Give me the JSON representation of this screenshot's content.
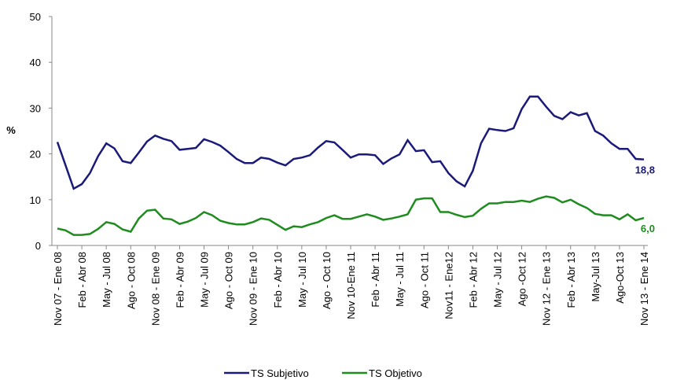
{
  "chart_data": {
    "type": "line",
    "y_label": "%",
    "categories": [
      "Nov 07 - Ene 08",
      null,
      null,
      "Feb - Abr 08",
      null,
      null,
      "May - Jul 08",
      null,
      null,
      "Ago - Oct 08",
      null,
      null,
      "Nov 08 - Ene 09",
      null,
      null,
      "Feb - Abr 09",
      null,
      null,
      "May - Jul 09",
      null,
      null,
      "Ago - Oct 09",
      null,
      null,
      "Nov 09 - Ene 10",
      null,
      null,
      "Feb - Abr 10",
      null,
      null,
      "May - Jul 10",
      null,
      null,
      "Ago - Oct 10",
      null,
      null,
      "Nov 10-Ene 11",
      null,
      null,
      "Feb - Abr 11",
      null,
      null,
      "May - Jul 11",
      null,
      null,
      "Ago - Oct 11",
      null,
      null,
      "Nov11 - Ene12",
      null,
      null,
      "Feb - Abr 12",
      null,
      null,
      "May - Jul 12",
      null,
      null,
      "Ago -Oct 12",
      null,
      null,
      "Nov 12 - Ene 13",
      null,
      null,
      "Feb - Abr 13",
      null,
      null,
      "May-Jul 13",
      null,
      null,
      "Ago-Oct 13",
      null,
      null,
      "Nov 13 - Ene 14"
    ],
    "series": [
      {
        "name": "TS Subjetivo",
        "color": "#1a1a7a",
        "values": [
          22.6,
          17.5,
          12.4,
          13.4,
          15.8,
          19.5,
          22.3,
          21.2,
          18.4,
          18.0,
          20.3,
          22.7,
          24.0,
          23.3,
          22.8,
          20.9,
          21.1,
          21.3,
          23.2,
          22.6,
          21.8,
          20.4,
          18.9,
          18.0,
          18.0,
          19.2,
          18.9,
          18.1,
          17.5,
          18.9,
          19.2,
          19.7,
          21.4,
          22.8,
          22.5,
          20.9,
          19.2,
          19.9,
          19.9,
          19.7,
          17.8,
          19.0,
          19.9,
          23.0,
          20.6,
          20.8,
          18.2,
          18.4,
          15.8,
          14.0,
          12.9,
          16.3,
          22.3,
          25.5,
          25.2,
          25.0,
          25.6,
          29.8,
          32.5,
          32.5,
          30.3,
          28.3,
          27.6,
          29.1,
          28.4,
          28.9,
          25.0,
          24.0,
          22.3,
          21.1,
          21.1,
          18.9,
          18.8
        ],
        "value_labels": [
          null,
          null,
          null,
          null,
          null,
          null,
          null,
          null,
          null,
          null,
          null,
          null,
          null,
          null,
          null,
          null,
          null,
          null,
          null,
          null,
          null,
          null,
          null,
          null,
          null,
          null,
          null,
          null,
          null,
          null,
          null,
          null,
          null,
          null,
          null,
          null,
          null,
          null,
          null,
          null,
          null,
          null,
          null,
          null,
          null,
          null,
          null,
          null,
          null,
          null,
          null,
          null,
          null,
          null,
          null,
          null,
          null,
          null,
          null,
          null,
          null,
          null,
          null,
          null,
          null,
          null,
          null,
          null,
          null,
          null,
          null,
          null,
          "18,8"
        ]
      },
      {
        "name": "TS Objetivo",
        "color": "#1e8c1e",
        "values": [
          3.7,
          3.3,
          2.3,
          2.3,
          2.5,
          3.6,
          5.1,
          4.7,
          3.5,
          3.0,
          5.9,
          7.6,
          7.8,
          5.9,
          5.7,
          4.7,
          5.2,
          6.0,
          7.3,
          6.6,
          5.4,
          4.9,
          4.6,
          4.6,
          5.1,
          5.9,
          5.6,
          4.5,
          3.4,
          4.2,
          4.0,
          4.6,
          5.1,
          6.0,
          6.6,
          5.8,
          5.8,
          6.3,
          6.8,
          6.3,
          5.6,
          5.9,
          6.3,
          6.8,
          10.0,
          10.3,
          10.3,
          7.3,
          7.3,
          6.7,
          6.2,
          6.5,
          8.0,
          9.2,
          9.2,
          9.5,
          9.5,
          9.8,
          9.5,
          10.2,
          10.7,
          10.4,
          9.4,
          10.0,
          9.0,
          8.2,
          6.9,
          6.6,
          6.6,
          5.7,
          6.8,
          5.5,
          6.0
        ],
        "value_labels": [
          null,
          null,
          null,
          null,
          null,
          null,
          null,
          null,
          null,
          null,
          null,
          null,
          null,
          null,
          null,
          null,
          null,
          null,
          null,
          null,
          null,
          null,
          null,
          null,
          null,
          null,
          null,
          null,
          null,
          null,
          null,
          null,
          null,
          null,
          null,
          null,
          null,
          null,
          null,
          null,
          null,
          null,
          null,
          null,
          null,
          null,
          null,
          null,
          null,
          null,
          null,
          null,
          null,
          null,
          null,
          null,
          null,
          null,
          null,
          null,
          null,
          null,
          null,
          null,
          null,
          null,
          null,
          null,
          null,
          null,
          null,
          null,
          "6,0"
        ]
      }
    ],
    "ylim": [
      0,
      50
    ],
    "yticks": [
      0,
      10,
      20,
      30,
      40,
      50
    ],
    "grid": false,
    "legend": "bottom"
  }
}
